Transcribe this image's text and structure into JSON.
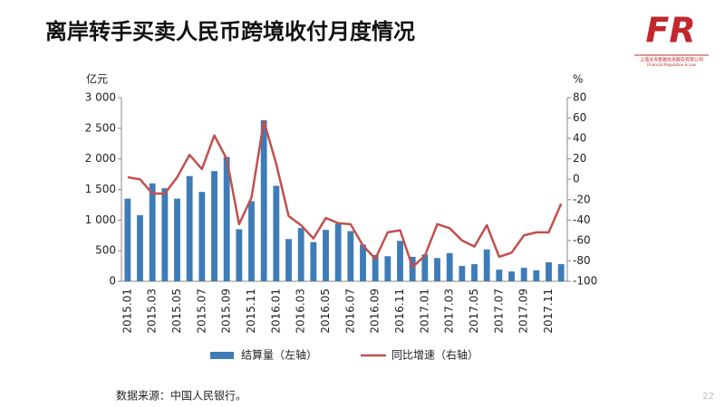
{
  "slide": {
    "title": "离岸转手买卖人民币跨境收付月度情况",
    "logo": "FR",
    "logo_company": "上海法询金融信息服务有限公司",
    "logo_english": "Financial Regulation & Law",
    "source": "数据来源：中国人民银行。",
    "page": "22"
  },
  "chart_data": {
    "type": "bar_line",
    "y_label": "亿元",
    "y2_label": "%",
    "categories": [
      "2015.01",
      null,
      "2015.03",
      null,
      "2015.05",
      null,
      "2015.07",
      null,
      "2015.09",
      null,
      "2015.11",
      null,
      "2016.01",
      null,
      "2016.03",
      null,
      "2016.05",
      null,
      "2016.07",
      null,
      "2016.09",
      null,
      "2016.11",
      null,
      "2017.01",
      null,
      "2017.03",
      null,
      "2017.05",
      null,
      "2017.07",
      null,
      "2017.09",
      null,
      "2017.11",
      null
    ],
    "series": [
      {
        "name": "结算量（左轴）",
        "type": "bar",
        "color": "#3e7cb8",
        "values": [
          1350,
          1080,
          1600,
          1520,
          1350,
          1720,
          1460,
          1800,
          2030,
          850,
          1310,
          2630,
          1560,
          690,
          870,
          640,
          840,
          940,
          820,
          600,
          430,
          410,
          660,
          400,
          440,
          380,
          460,
          250,
          280,
          520,
          190,
          160,
          220,
          180,
          310,
          280
        ]
      },
      {
        "name": "同比增速（右轴）",
        "type": "line",
        "axis": "y2",
        "color": "#c0504d",
        "values": [
          2,
          0,
          -14,
          -14,
          2,
          24,
          10,
          43,
          20,
          -44,
          -18,
          57,
          15,
          -36,
          -45,
          -58,
          -38,
          -43,
          -44,
          -65,
          -78,
          -52,
          -50,
          -86,
          -75,
          -44,
          -48,
          -60,
          -66,
          -45,
          -76,
          -72,
          -55,
          -52,
          -52,
          -24
        ]
      }
    ],
    "ylim": [
      0,
      3000
    ],
    "yticks": [
      0,
      500,
      {
        "value": 1000,
        "label": "1 000"
      },
      {
        "value": 1500,
        "label": "1 500"
      },
      {
        "value": 2000,
        "label": "2 000"
      },
      {
        "value": 2500,
        "label": "2 500"
      },
      {
        "value": 3000,
        "label": "3 000"
      }
    ],
    "y2lim": [
      -100,
      80
    ],
    "y2ticks": [
      -100,
      -80,
      -60,
      -40,
      -20,
      0,
      20,
      40,
      60,
      80
    ],
    "legend": "bottom"
  }
}
